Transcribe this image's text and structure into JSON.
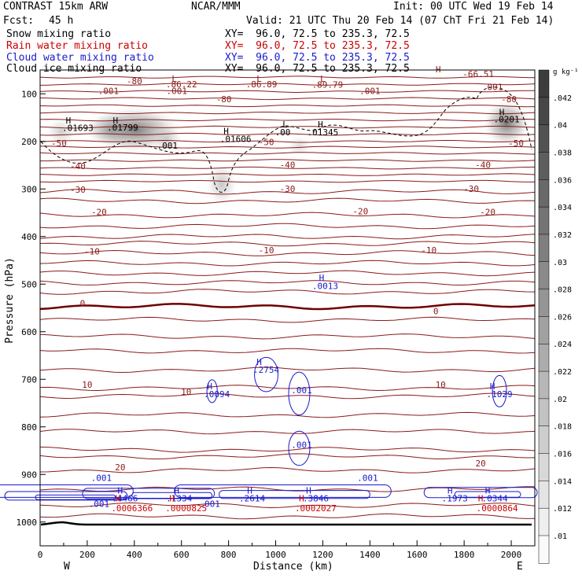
{
  "header": {
    "model": "CONTRAST 15km ARW",
    "center": "NCAR/MMM",
    "init": "Init: 00 UTC Wed 19 Feb 14",
    "fcst_label": "Fcst:",
    "fcst_value": "45 h",
    "valid": "Valid: 21 UTC Thu 20 Feb 14 (07 ChT Fri 21 Feb 14)",
    "fields": [
      {
        "name": "Snow mixing ratio",
        "xy": "XY=  96.0, 72.5 to 235.3, 72.5",
        "color": "#000000"
      },
      {
        "name": "Rain water mixing ratio",
        "xy": "XY=  96.0, 72.5 to 235.3, 72.5",
        "color": "#cc0000"
      },
      {
        "name": "Cloud water mixing ratio",
        "xy": "XY=  96.0, 72.5 to 235.3, 72.5",
        "color": "#1a1acc"
      },
      {
        "name": "Cloud ice mixing ratio",
        "xy": "XY=  96.0, 72.5 to 235.3, 72.5",
        "color": "#000000"
      }
    ]
  },
  "chart_data": {
    "type": "cross-section",
    "xlabel": "Distance (km)",
    "ylabel": "Pressure (hPa)",
    "xlim": [
      0,
      2100
    ],
    "ylim": [
      1050,
      50
    ],
    "x_ticks": [
      0,
      200,
      400,
      600,
      800,
      1000,
      1200,
      1400,
      1600,
      1800,
      2000
    ],
    "y_ticks": [
      100,
      200,
      300,
      400,
      500,
      600,
      700,
      800,
      900,
      1000
    ],
    "x_end_labels": {
      "left": "W",
      "right": "E"
    },
    "colorbar": {
      "unit": "g kg⁻¹",
      "ticks": [
        ".042",
        ".04",
        ".038",
        ".036",
        ".034",
        ".032",
        ".03",
        ".028",
        ".026",
        ".024",
        ".022",
        ".02",
        ".018",
        ".016",
        ".014",
        ".012",
        ".01"
      ]
    },
    "temperature_labels": [
      {
        "text": "-80",
        "x": 400,
        "p": 80
      },
      {
        "text": "-80",
        "x": 780,
        "p": 118
      },
      {
        "text": "-80",
        "x": 1990,
        "p": 118
      },
      {
        "text": "-50",
        "x": 80,
        "p": 210
      },
      {
        "text": "-50",
        "x": 960,
        "p": 208
      },
      {
        "text": "-50",
        "x": 2020,
        "p": 210
      },
      {
        "text": "-40",
        "x": 160,
        "p": 258
      },
      {
        "text": "-40",
        "x": 1050,
        "p": 256
      },
      {
        "text": "-40",
        "x": 1880,
        "p": 256
      },
      {
        "text": "-30",
        "x": 160,
        "p": 308
      },
      {
        "text": "-30",
        "x": 1050,
        "p": 306
      },
      {
        "text": "-30",
        "x": 1830,
        "p": 306
      },
      {
        "text": "-20",
        "x": 250,
        "p": 355
      },
      {
        "text": "-20",
        "x": 1360,
        "p": 353
      },
      {
        "text": "-20",
        "x": 1900,
        "p": 355
      },
      {
        "text": "-10",
        "x": 220,
        "p": 438
      },
      {
        "text": "-10",
        "x": 960,
        "p": 435
      },
      {
        "text": "-10",
        "x": 1650,
        "p": 435
      },
      {
        "text": "0",
        "x": 180,
        "p": 547
      },
      {
        "text": "0",
        "x": 1680,
        "p": 563
      },
      {
        "text": "10",
        "x": 200,
        "p": 718
      },
      {
        "text": "10",
        "x": 620,
        "p": 733
      },
      {
        "text": "10",
        "x": 1700,
        "p": 718
      },
      {
        "text": "20",
        "x": 340,
        "p": 891
      },
      {
        "text": "20",
        "x": 1870,
        "p": 883
      }
    ],
    "rain_labels": [
      {
        "text": "L",
        "x": 570,
        "p": 75
      },
      {
        "text": ".86.22",
        "x": 600,
        "p": 86
      },
      {
        "text": ".001",
        "x": 580,
        "p": 100
      },
      {
        "text": ".001",
        "x": 290,
        "p": 100
      },
      {
        "text": "L",
        "x": 930,
        "p": 75
      },
      {
        "text": ".86.89",
        "x": 940,
        "p": 86
      },
      {
        "text": "L",
        "x": 1200,
        "p": 75
      },
      {
        "text": ".89.79",
        "x": 1220,
        "p": 87
      },
      {
        "text": ".001",
        "x": 1400,
        "p": 100
      },
      {
        "text": "H",
        "x": 1690,
        "p": 55
      },
      {
        "text": "-66.51",
        "x": 1860,
        "p": 65
      },
      {
        "text": ".001",
        "x": 1920,
        "p": 92
      }
    ],
    "snow_labels": [
      {
        "text": "H",
        "x": 120,
        "p": 162
      },
      {
        "text": ".01693",
        "x": 160,
        "p": 178
      },
      {
        "text": "H",
        "x": 320,
        "p": 162
      },
      {
        "text": ".01799",
        "x": 350,
        "p": 177
      },
      {
        "text": ".001",
        "x": 540,
        "p": 215
      },
      {
        "text": "H",
        "x": 790,
        "p": 185
      },
      {
        "text": ".01606",
        "x": 830,
        "p": 201
      },
      {
        "text": "L",
        "x": 1040,
        "p": 171
      },
      {
        "text": ".00",
        "x": 1030,
        "p": 187
      },
      {
        "text": "H",
        "x": 1190,
        "p": 171
      },
      {
        "text": ".01345",
        "x": 1200,
        "p": 187
      },
      {
        "text": "H",
        "x": 1960,
        "p": 145
      },
      {
        "text": ".0201",
        "x": 1980,
        "p": 160
      }
    ],
    "cloud_water_labels": [
      {
        "text": "H",
        "x": 1195,
        "p": 493
      },
      {
        "text": ".0013",
        "x": 1210,
        "p": 510
      },
      {
        "text": "H",
        "x": 930,
        "p": 670
      },
      {
        "text": ".2754",
        "x": 960,
        "p": 686
      },
      {
        "text": "H",
        "x": 720,
        "p": 721
      },
      {
        "text": ".0094",
        "x": 750,
        "p": 738
      },
      {
        "text": ".001",
        "x": 1110,
        "p": 729
      },
      {
        "text": ".001",
        "x": 1110,
        "p": 844
      },
      {
        "text": "H",
        "x": 1920,
        "p": 721
      },
      {
        "text": ".1029",
        "x": 1950,
        "p": 738
      },
      {
        "text": ".001",
        "x": 260,
        "p": 914
      },
      {
        "text": ".001",
        "x": 250,
        "p": 968
      },
      {
        "text": ".001",
        "x": 720,
        "p": 968
      },
      {
        "text": ".001",
        "x": 1390,
        "p": 914
      },
      {
        "text": "H",
        "x": 340,
        "p": 940
      },
      {
        "text": ".4466",
        "x": 360,
        "p": 957
      },
      {
        "text": "H",
        "x": 580,
        "p": 940
      },
      {
        "text": ".1334",
        "x": 590,
        "p": 957
      },
      {
        "text": "H",
        "x": 890,
        "p": 940
      },
      {
        "text": ".2614",
        "x": 900,
        "p": 957
      },
      {
        "text": "H",
        "x": 1140,
        "p": 940
      },
      {
        "text": ".3846",
        "x": 1170,
        "p": 957
      },
      {
        "text": "H",
        "x": 1740,
        "p": 940
      },
      {
        "text": ".1973",
        "x": 1760,
        "p": 957
      },
      {
        "text": "H",
        "x": 1900,
        "p": 940
      },
      {
        "text": ".0344",
        "x": 1930,
        "p": 957
      }
    ],
    "rain_low_labels": [
      {
        "text": "H",
        "x": 330,
        "p": 957
      },
      {
        "text": ".0006366",
        "x": 390,
        "p": 977
      },
      {
        "text": "H",
        "x": 560,
        "p": 957
      },
      {
        "text": ".0000825",
        "x": 620,
        "p": 977
      },
      {
        "text": "H",
        "x": 1110,
        "p": 957
      },
      {
        "text": ".0002027",
        "x": 1170,
        "p": 977
      },
      {
        "text": "H",
        "x": 1870,
        "p": 957
      },
      {
        "text": ".0000864",
        "x": 1940,
        "p": 977
      }
    ],
    "isotherm_levels": [
      65,
      80,
      95,
      110,
      125,
      140,
      155,
      170,
      185,
      200,
      212,
      225,
      240,
      256,
      270,
      284,
      306,
      325,
      355,
      378,
      400,
      415,
      435,
      456,
      477,
      497,
      516,
      547,
      575,
      610,
      640,
      680,
      718,
      735,
      775,
      810,
      848,
      862,
      891,
      931,
      965,
      988
    ]
  }
}
